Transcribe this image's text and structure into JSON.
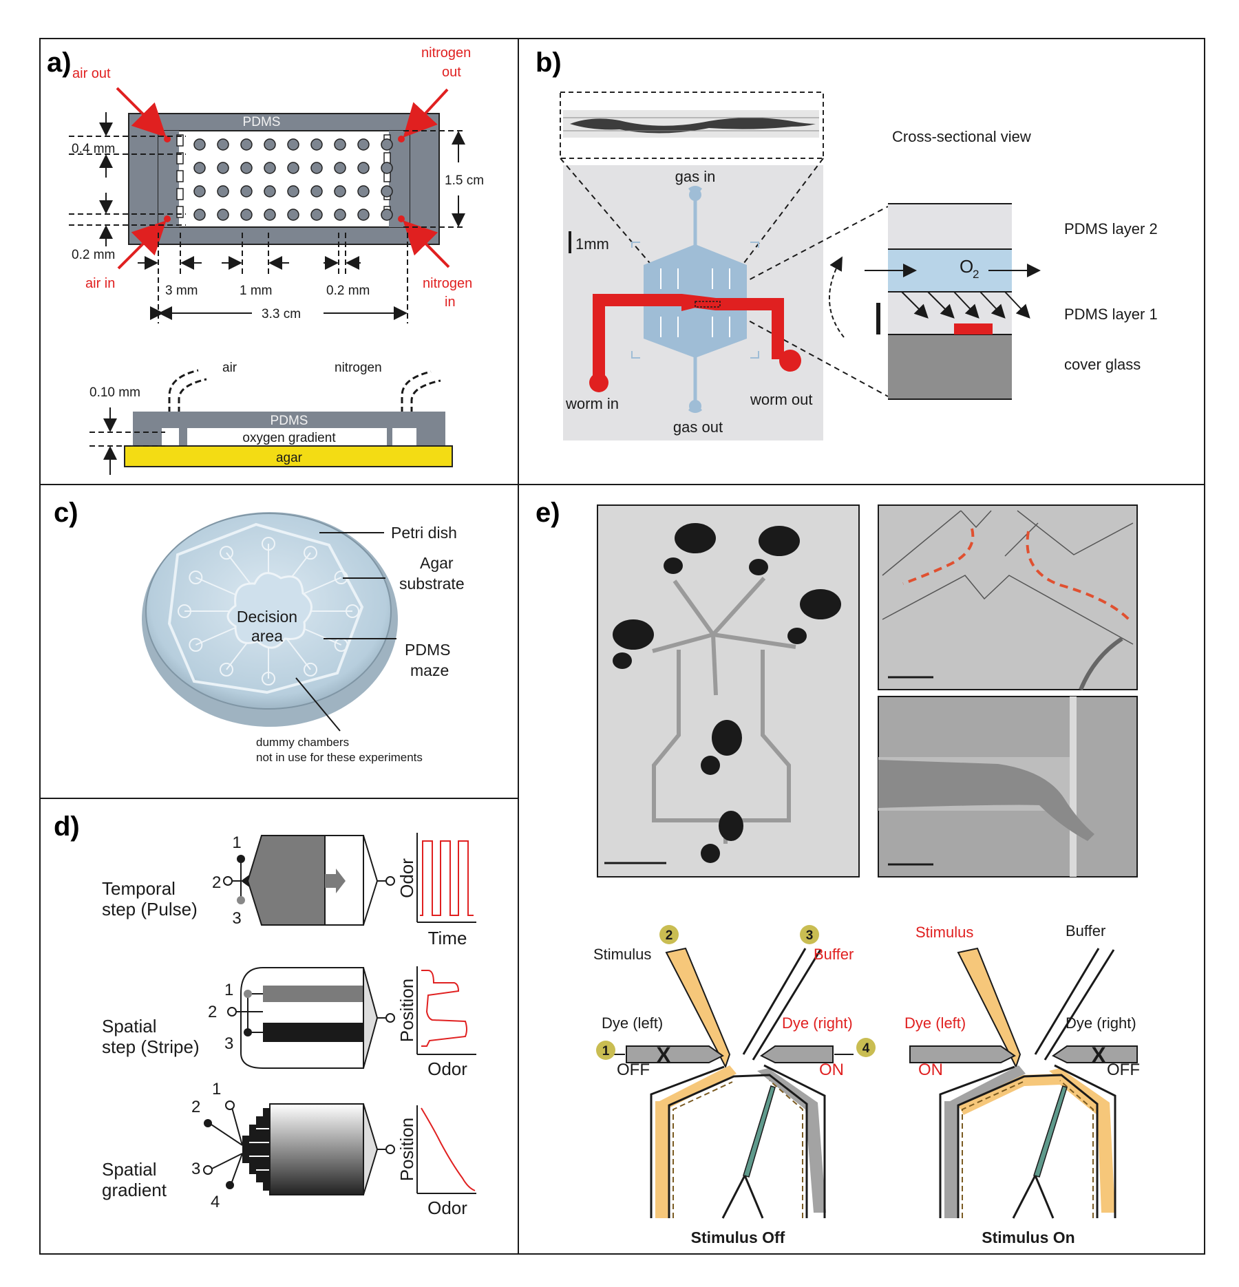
{
  "panel_a": {
    "letter": "a)",
    "air_out": "air out",
    "nitrogen_out_1": "nitrogen",
    "nitrogen_out_2": "out",
    "pdms": "PDMS",
    "dim_04": "0.4 mm",
    "dim_02": "0.2 mm",
    "dim_15": "1.5 cm",
    "air_in": "air in",
    "nitrogen_in_1": "nitrogen",
    "nitrogen_in_2": "in",
    "dim_3mm": "3 mm",
    "dim_1mm": "1 mm",
    "dim_02b": "0.2 mm",
    "dim_33": "3.3 cm",
    "side_air": "air",
    "side_nitrogen": "nitrogen",
    "side_010": "0.10 mm",
    "side_pdms": "PDMS",
    "side_gradient": "oxygen gradient",
    "side_agar": "agar"
  },
  "panel_b": {
    "letter": "b)",
    "gas_in": "gas in",
    "gas_out": "gas out",
    "scale": "1mm",
    "worm_in": "worm in",
    "worm_out": "worm out",
    "cross_title": "Cross-sectional view",
    "layer2": "PDMS layer 2",
    "o2": "O",
    "o2_sub": "2",
    "layer1": "PDMS layer 1",
    "cover": "cover glass"
  },
  "panel_c": {
    "letter": "c)",
    "petri": "Petri dish",
    "agar_1": "Agar",
    "agar_2": "substrate",
    "decision_1": "Decision",
    "decision_2": "area",
    "maze_1": "PDMS",
    "maze_2": "maze",
    "dummy_1": "dummy chambers",
    "dummy_2": "not in use for these experiments"
  },
  "panel_d": {
    "letter": "d)",
    "temporal_1": "Temporal",
    "temporal_2": "step (Pulse)",
    "spatial_step_1": "Spatial",
    "spatial_step_2": "step (Stripe)",
    "gradient_1": "Spatial",
    "gradient_2": "gradient",
    "odor_axis": "Odor",
    "time_axis": "Time",
    "position_axis": "Position",
    "odor_x": "Odor",
    "position_axis_2": "Position",
    "odor_x_2": "Odor",
    "n1": "1",
    "n2": "2",
    "n3": "3",
    "n4": "4"
  },
  "panel_e": {
    "letter": "e)",
    "left": {
      "num2": "2",
      "num3": "3",
      "num1": "1",
      "num4": "4",
      "stimulus": "Stimulus",
      "buffer": "Buffer",
      "dye_left": "Dye (left)",
      "dye_right": "Dye (right)",
      "off": "OFF",
      "on": "ON",
      "x": "X",
      "caption": "Stimulus Off"
    },
    "right": {
      "stimulus": "Stimulus",
      "buffer": "Buffer",
      "dye_left": "Dye (left)",
      "dye_right": "Dye (right)",
      "on": "ON",
      "off": "OFF",
      "x": "X",
      "caption": "Stimulus On"
    }
  },
  "colors": {
    "pdms_gray": "#7d8590",
    "arrow_red": "#e02020",
    "agar_yellow": "#f3dc14",
    "channel_blue": "#9fbdd6",
    "stimulus_orange": "#f6c77a",
    "dye_gray": "#a3a3a3",
    "worm_teal": "#5f9a8c",
    "badge_olive": "#c9bd52"
  }
}
